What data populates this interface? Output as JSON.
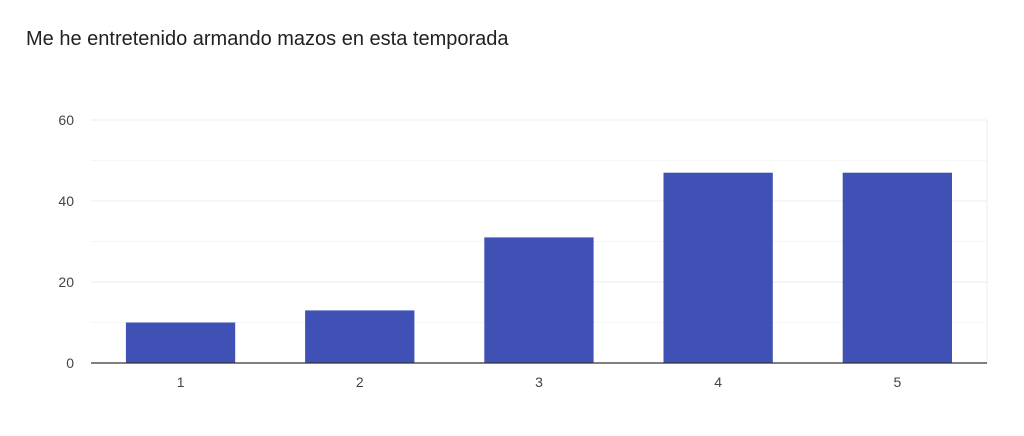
{
  "chart_data": {
    "type": "bar",
    "title": "Me he entretenido armando mazos en esta temporada",
    "categories": [
      "1",
      "2",
      "3",
      "4",
      "5"
    ],
    "values": [
      10,
      13,
      31,
      47,
      47
    ],
    "ylim": [
      0,
      60
    ],
    "yticks": [
      "0",
      "20",
      "40",
      "60"
    ],
    "xlabel": "",
    "ylabel": "",
    "grid": true,
    "legend": "none",
    "bar_color": "#3f51b5",
    "grid_color": "#eeeeee",
    "axis_color": "#333333"
  }
}
